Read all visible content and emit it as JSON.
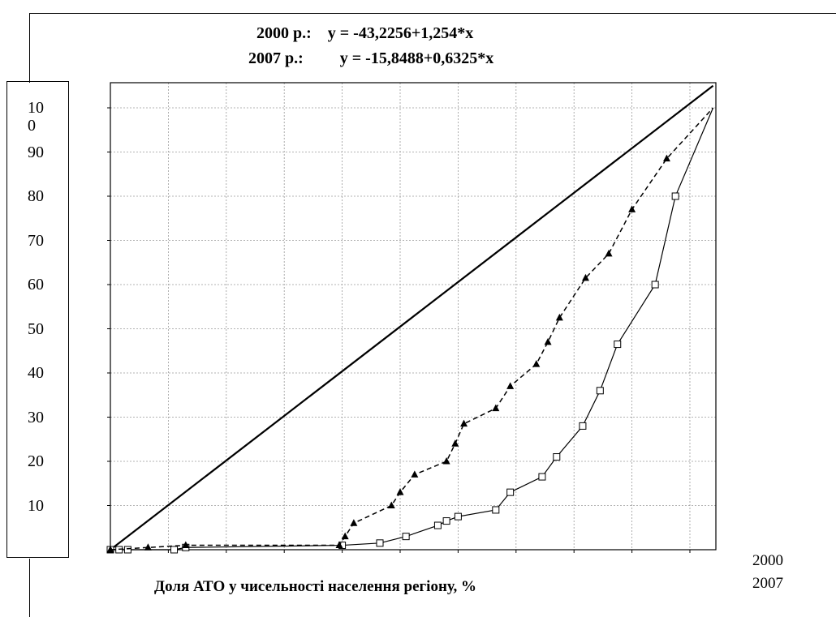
{
  "equations": {
    "line1": "2000 р.:    y = -43,2256+1,254*x",
    "line2": "2007 р.:         y = -15,8488+0,6325*x"
  },
  "chart_data": {
    "type": "line",
    "title": "",
    "xlabel": "Доля АТО у чисельності населення регіону, %",
    "ylabel": "",
    "xlim": [
      0,
      104
    ],
    "ylim": [
      0,
      105
    ],
    "y_ticks": [
      {
        "value": 10,
        "label": "10"
      },
      {
        "value": 20,
        "label": "20"
      },
      {
        "value": 30,
        "label": "30"
      },
      {
        "value": 40,
        "label": "40"
      },
      {
        "value": 50,
        "label": "50"
      },
      {
        "value": 60,
        "label": "60"
      },
      {
        "value": 70,
        "label": "70"
      },
      {
        "value": 80,
        "label": "80"
      },
      {
        "value": 90,
        "label": "90"
      },
      {
        "value": 100,
        "label": "10\n0"
      }
    ],
    "grid": true,
    "legend": [
      "2000",
      "2007"
    ],
    "diagonal": {
      "x": [
        0,
        104
      ],
      "y": [
        0,
        105
      ]
    },
    "series": [
      {
        "name": "2000",
        "marker": "square-open",
        "line": "solid",
        "x": [
          0,
          1.5,
          3,
          11,
          13,
          40,
          46.5,
          51,
          56.5,
          58,
          60,
          66.5,
          69,
          74.5,
          77,
          81.5,
          84.5,
          87.5,
          94,
          97.5,
          104
        ],
        "y": [
          0,
          0,
          0,
          0,
          0.5,
          1,
          1.5,
          3,
          5.5,
          6.5,
          7.5,
          9,
          13,
          16.5,
          21,
          28,
          36,
          46.5,
          60,
          80,
          100
        ]
      },
      {
        "name": "2007",
        "marker": "triangle-filled",
        "line": "dashed",
        "x": [
          0,
          6.5,
          13,
          39.5,
          40.5,
          42,
          48.5,
          50,
          52.5,
          58,
          59.5,
          61,
          66.5,
          69,
          73.5,
          75.5,
          77.5,
          82,
          86,
          90,
          96,
          104
        ],
        "y": [
          0,
          0.5,
          1,
          1,
          3,
          6,
          10,
          13,
          17,
          20,
          24,
          28.5,
          32,
          37,
          42,
          47,
          52.5,
          61.5,
          67,
          77,
          88.5,
          100
        ]
      }
    ]
  }
}
